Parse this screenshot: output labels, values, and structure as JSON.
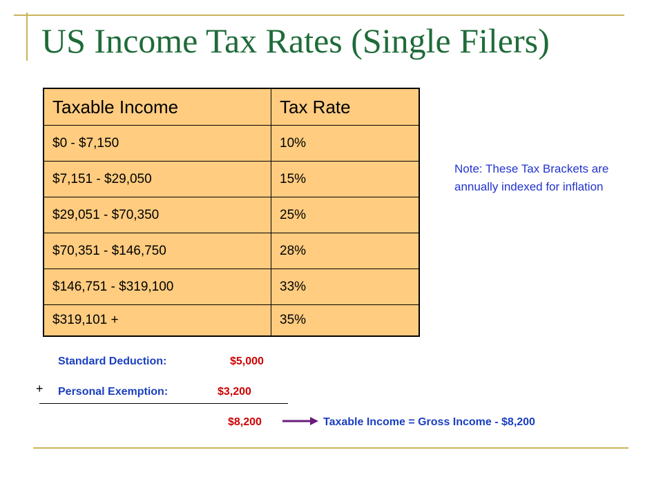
{
  "slide": {
    "title": "US Income Tax Rates (Single Filers)"
  },
  "table": {
    "headers": [
      "Taxable Income",
      "Tax Rate"
    ],
    "rows": [
      [
        "$0 - $7,150",
        "10%"
      ],
      [
        "$7,151 - $29,050",
        "15%"
      ],
      [
        "$29,051 - $70,350",
        "25%"
      ],
      [
        "$70,351 - $146,750",
        "28%"
      ],
      [
        "$146,751 - $319,100",
        "33%"
      ],
      [
        "$319,101 +",
        "35%"
      ]
    ]
  },
  "note": {
    "text": "Note: These Tax Brackets are annually indexed for inflation"
  },
  "deductions": {
    "standard_label": "Standard Deduction:",
    "standard_value": "$5,000",
    "personal_label": "Personal Exemption:",
    "personal_value": "$3,200",
    "plus_sign": "+",
    "total": "$8,200",
    "formula": "Taxable Income = Gross Income - $8,200"
  },
  "colors": {
    "title": "#1f6b3a",
    "table_fill": "#ffcc80",
    "frame": "#c8b45a",
    "note": "#2233cc",
    "label_blue": "#1a3fbf",
    "value_red": "#cc0000",
    "arrow": "#6a1b7a"
  }
}
